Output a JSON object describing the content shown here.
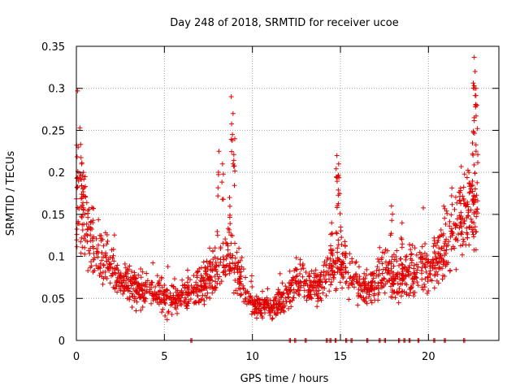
{
  "chart_data": {
    "type": "scatter",
    "title": "Day 248 of 2018, SRMTID for receiver ucoe",
    "xlabel": "GPS time / hours",
    "ylabel": "SRMTID / TECUs",
    "xlim": [
      0,
      24
    ],
    "ylim": [
      0,
      0.35
    ],
    "xticks": [
      0,
      5,
      10,
      15,
      20
    ],
    "xtick_labels": [
      "0",
      "5",
      "10",
      "15",
      "20"
    ],
    "yticks": [
      0,
      0.05,
      0.1,
      0.15,
      0.2,
      0.25,
      0.3,
      0.35
    ],
    "ytick_labels": [
      "0",
      "0.05",
      "0.1",
      "0.15",
      "0.2",
      "0.25",
      "0.3",
      "0.35"
    ],
    "grid": true,
    "marker": "+",
    "color": "#e00000",
    "series": [
      {
        "name": "SRMTID",
        "description_points": "envelope (hour, typical SRMTID) used to place the dense cloud of points",
        "envelope": [
          [
            0.0,
            0.17
          ],
          [
            0.3,
            0.16
          ],
          [
            0.6,
            0.13
          ],
          [
            1.0,
            0.115
          ],
          [
            1.5,
            0.1
          ],
          [
            2.0,
            0.085
          ],
          [
            2.5,
            0.07
          ],
          [
            3.0,
            0.065
          ],
          [
            3.5,
            0.062
          ],
          [
            4.0,
            0.058
          ],
          [
            4.5,
            0.055
          ],
          [
            5.0,
            0.05
          ],
          [
            5.5,
            0.05
          ],
          [
            6.0,
            0.055
          ],
          [
            6.5,
            0.06
          ],
          [
            7.0,
            0.06
          ],
          [
            7.5,
            0.07
          ],
          [
            8.0,
            0.085
          ],
          [
            8.5,
            0.1
          ],
          [
            9.0,
            0.09
          ],
          [
            9.5,
            0.065
          ],
          [
            10.0,
            0.045
          ],
          [
            10.5,
            0.04
          ],
          [
            11.0,
            0.04
          ],
          [
            11.5,
            0.042
          ],
          [
            12.0,
            0.055
          ],
          [
            12.5,
            0.075
          ],
          [
            13.0,
            0.065
          ],
          [
            13.5,
            0.06
          ],
          [
            14.0,
            0.07
          ],
          [
            14.5,
            0.09
          ],
          [
            15.0,
            0.095
          ],
          [
            15.5,
            0.08
          ],
          [
            16.0,
            0.07
          ],
          [
            16.5,
            0.06
          ],
          [
            17.0,
            0.07
          ],
          [
            17.5,
            0.085
          ],
          [
            18.0,
            0.07
          ],
          [
            18.5,
            0.075
          ],
          [
            19.0,
            0.08
          ],
          [
            19.5,
            0.085
          ],
          [
            20.0,
            0.085
          ],
          [
            20.5,
            0.09
          ],
          [
            21.0,
            0.11
          ],
          [
            21.5,
            0.13
          ],
          [
            22.0,
            0.15
          ],
          [
            22.5,
            0.16
          ],
          [
            22.8,
            0.15
          ]
        ],
        "highlights": [
          [
            0.1,
            0.23
          ],
          [
            0.2,
            0.253
          ],
          [
            0.3,
            0.21
          ],
          [
            0.4,
            0.2
          ],
          [
            0.5,
            0.195
          ],
          [
            8.1,
            0.225
          ],
          [
            8.3,
            0.21
          ],
          [
            8.8,
            0.29
          ],
          [
            8.9,
            0.27
          ],
          [
            9.0,
            0.24
          ],
          [
            8.7,
            0.17
          ],
          [
            14.8,
            0.22
          ],
          [
            14.9,
            0.21
          ],
          [
            14.85,
            0.195
          ],
          [
            14.5,
            0.14
          ],
          [
            17.9,
            0.16
          ],
          [
            18.5,
            0.14
          ],
          [
            22.6,
            0.337
          ],
          [
            22.65,
            0.32
          ],
          [
            22.7,
            0.3
          ],
          [
            22.75,
            0.28
          ],
          [
            22.6,
            0.265
          ],
          [
            22.5,
            0.235
          ],
          [
            22.3,
            0.2
          ]
        ],
        "zero_values_hours": [
          6.5,
          12.1,
          12.4,
          13.0,
          14.2,
          14.4,
          14.7,
          15.3,
          15.6,
          16.5,
          17.2,
          17.5,
          18.3,
          18.6,
          18.9,
          19.4,
          20.3,
          20.9,
          22.0
        ]
      }
    ]
  }
}
